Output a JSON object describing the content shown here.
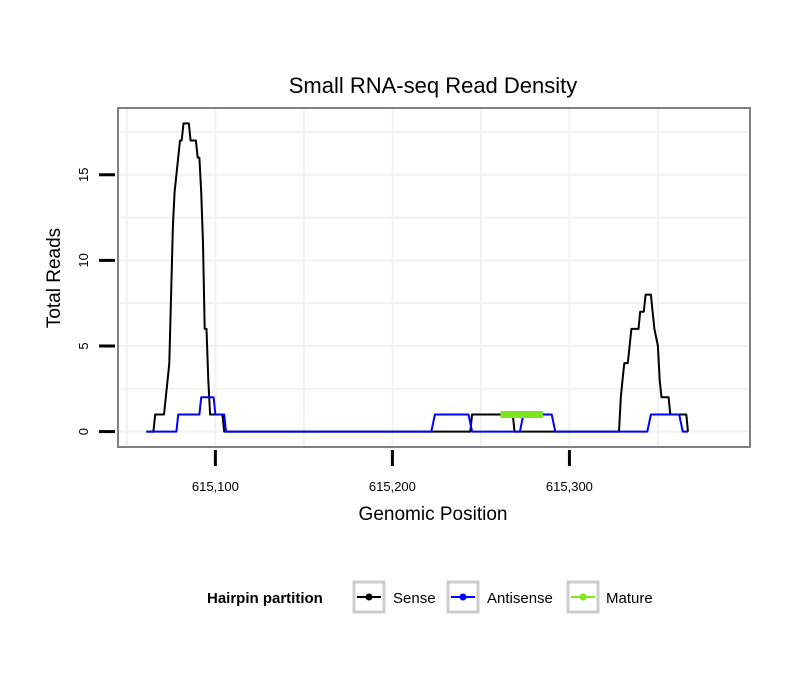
{
  "chart_data": {
    "type": "line",
    "title": "Small RNA-seq Read Density",
    "xlabel": "Genomic Position",
    "ylabel": "Total Reads",
    "xlim": [
      615045,
      615402
    ],
    "ylim": [
      -0.9,
      18.9
    ],
    "x_ticks": [
      615100,
      615200,
      615300
    ],
    "x_tick_labels": [
      "615,100",
      "615,200",
      "615,300"
    ],
    "y_ticks": [
      0,
      5,
      10,
      15
    ],
    "y_tick_labels": [
      "0",
      "5",
      "10",
      "15"
    ],
    "grid": true,
    "legend": {
      "title": "Hairpin partition",
      "position": "bottom"
    },
    "series": [
      {
        "name": "Sense",
        "color": "#000000",
        "points": [
          [
            615061,
            0
          ],
          [
            615065,
            0
          ],
          [
            615066,
            1
          ],
          [
            615071,
            1
          ],
          [
            615072,
            2
          ],
          [
            615073,
            3
          ],
          [
            615074,
            4
          ],
          [
            615075,
            8
          ],
          [
            615076,
            12
          ],
          [
            615077,
            14
          ],
          [
            615078,
            15
          ],
          [
            615079,
            16
          ],
          [
            615080,
            17
          ],
          [
            615081,
            17
          ],
          [
            615082,
            18
          ],
          [
            615085,
            18
          ],
          [
            615086,
            17
          ],
          [
            615089,
            17
          ],
          [
            615090,
            16
          ],
          [
            615091,
            16
          ],
          [
            615092,
            14
          ],
          [
            615093,
            11
          ],
          [
            615094,
            6
          ],
          [
            615095,
            6
          ],
          [
            615096,
            3
          ],
          [
            615097,
            1
          ],
          [
            615104,
            1
          ],
          [
            615105,
            0
          ],
          [
            615242,
            0
          ],
          [
            615244,
            0
          ],
          [
            615245,
            1
          ],
          [
            615268,
            1
          ],
          [
            615269,
            0
          ],
          [
            615328,
            0
          ],
          [
            615329,
            2
          ],
          [
            615330,
            3
          ],
          [
            615331,
            4
          ],
          [
            615333,
            4
          ],
          [
            615334,
            5
          ],
          [
            615335,
            6
          ],
          [
            615339,
            6
          ],
          [
            615340,
            7
          ],
          [
            615342,
            7
          ],
          [
            615343,
            8
          ],
          [
            615346,
            8
          ],
          [
            615347,
            7
          ],
          [
            615348,
            6
          ],
          [
            615350,
            5
          ],
          [
            615351,
            3
          ],
          [
            615352,
            2
          ],
          [
            615356,
            2
          ],
          [
            615357,
            1
          ],
          [
            615366,
            1
          ],
          [
            615367,
            0
          ]
        ]
      },
      {
        "name": "Antisense",
        "color": "#0000ff",
        "points": [
          [
            615061,
            0
          ],
          [
            615078,
            0
          ],
          [
            615079,
            1
          ],
          [
            615091,
            1
          ],
          [
            615092,
            2
          ],
          [
            615099,
            2
          ],
          [
            615100,
            1
          ],
          [
            615105,
            1
          ],
          [
            615106,
            0
          ],
          [
            615222,
            0
          ],
          [
            615224,
            1
          ],
          [
            615243,
            1
          ],
          [
            615245,
            0
          ],
          [
            615272,
            0
          ],
          [
            615274,
            1
          ],
          [
            615290,
            1
          ],
          [
            615292,
            0
          ],
          [
            615344,
            0
          ],
          [
            615346,
            1
          ],
          [
            615362,
            1
          ],
          [
            615364,
            0
          ],
          [
            615367,
            0
          ]
        ]
      },
      {
        "name": "Mature",
        "color": "#7fe51f",
        "points": [
          [
            615261,
            1
          ],
          [
            615285,
            1
          ]
        ]
      }
    ]
  }
}
